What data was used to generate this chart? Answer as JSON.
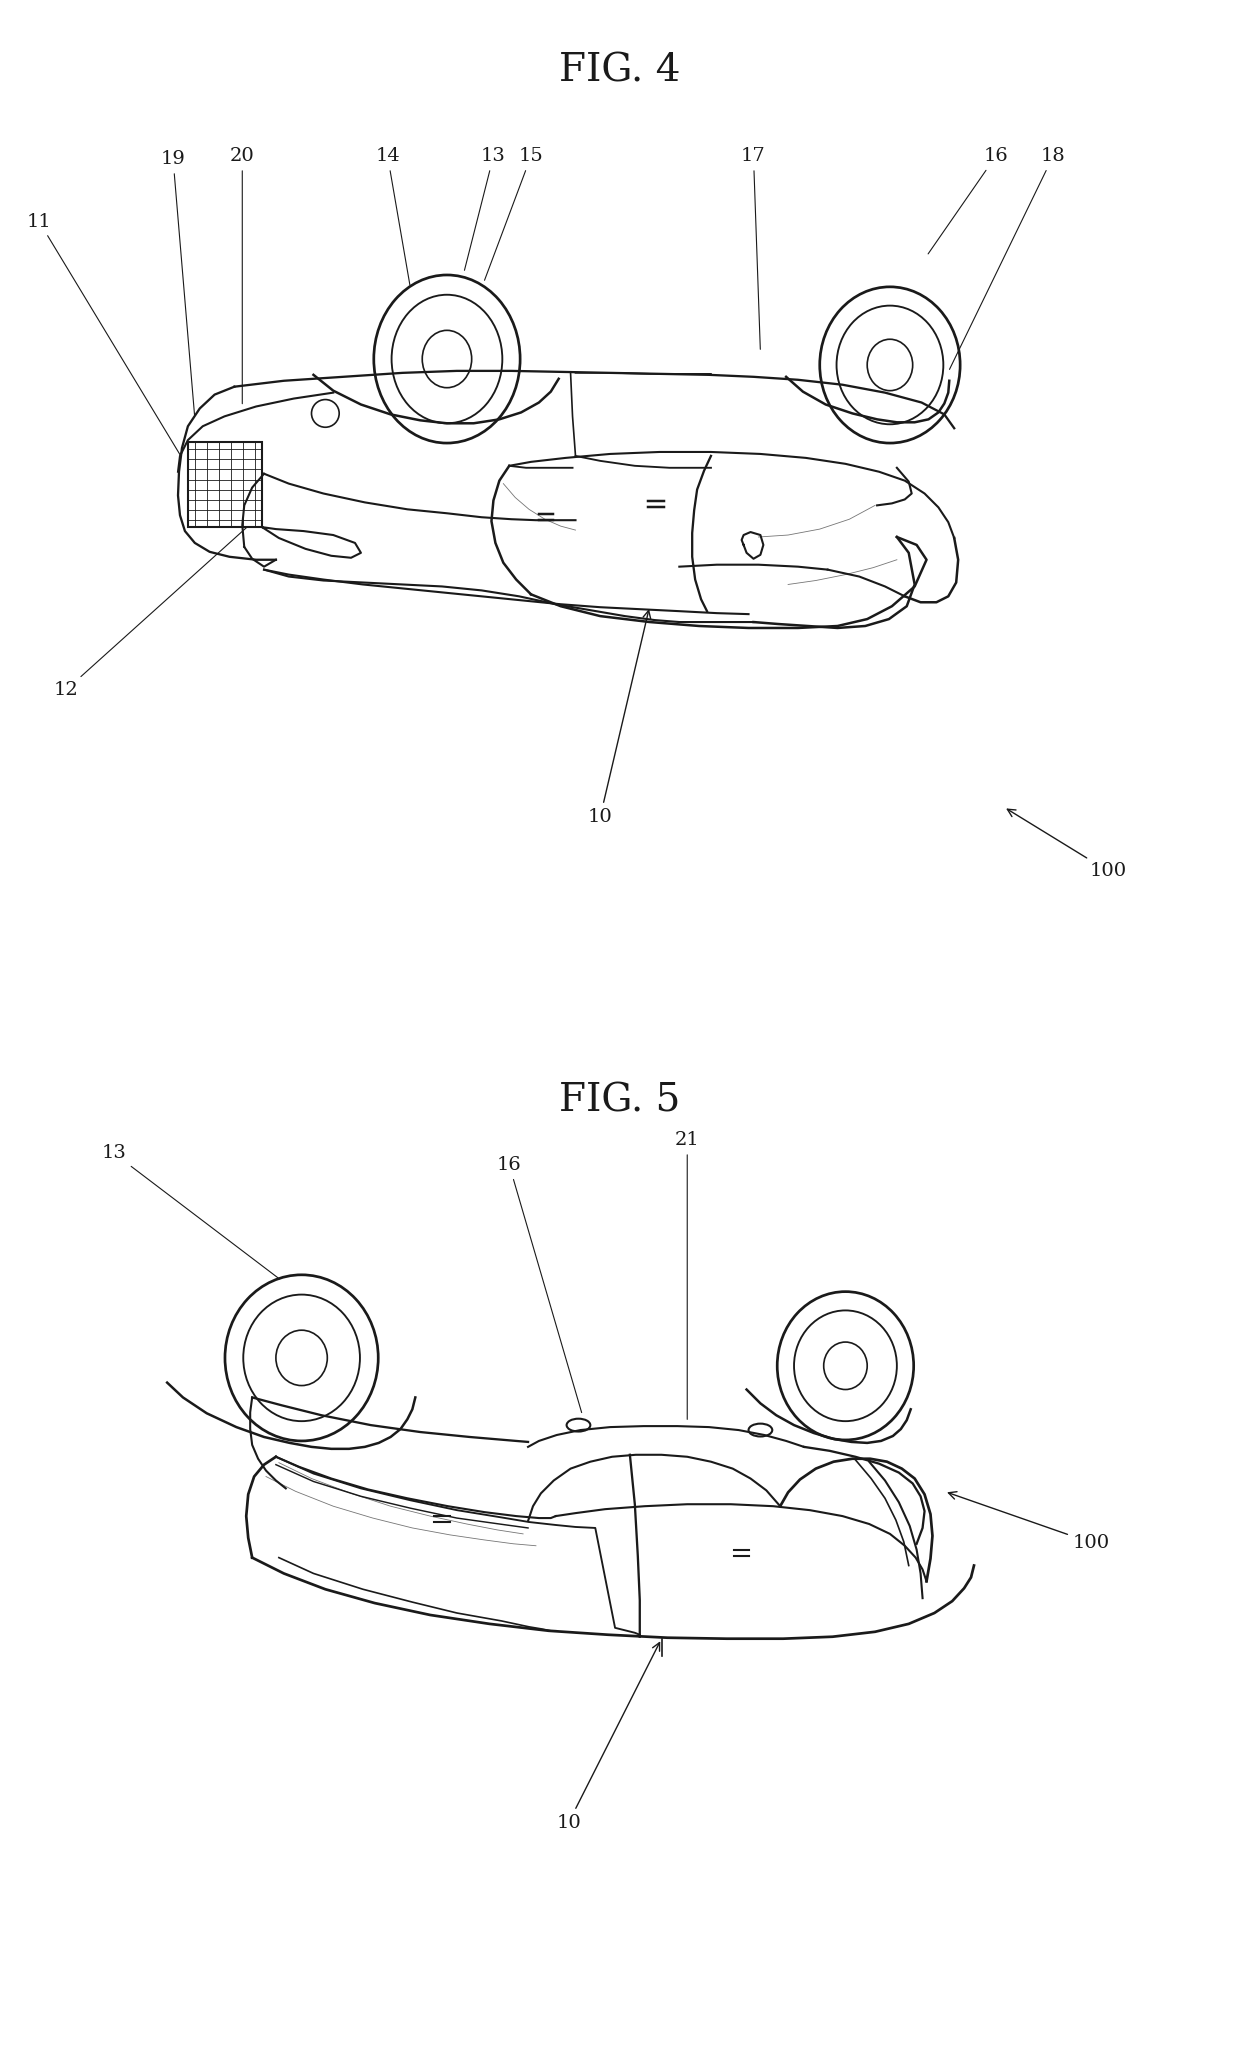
{
  "fig_title_1": "FIG. 4",
  "fig_title_2": "FIG. 5",
  "background_color": "#ffffff",
  "line_color": "#1a1a1a",
  "line_width": 1.5,
  "title_fontsize": 28,
  "label_fontsize": 14
}
